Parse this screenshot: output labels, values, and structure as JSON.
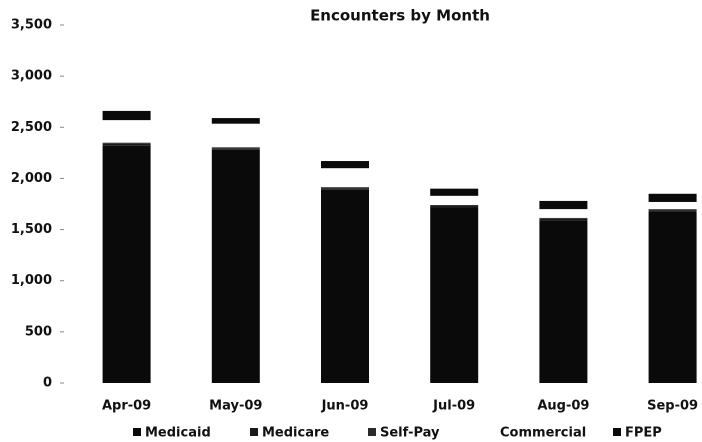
{
  "chart_data": {
    "type": "stacked_bar",
    "title": "Encounters by Month",
    "categories": [
      "Apr-09",
      "May-09",
      "Jun-09",
      "Jul-09",
      "Aug-09",
      "Sep-09"
    ],
    "series": [
      {
        "name": "Medicaid",
        "color": "#0a0a0a",
        "values": [
          2320,
          2280,
          1890,
          1720,
          1590,
          1680
        ]
      },
      {
        "name": "Medicare",
        "color": "#1a1a1a",
        "values": [
          20,
          15,
          15,
          10,
          15,
          10
        ]
      },
      {
        "name": "Self-Pay",
        "color": "#2a2a2a",
        "values": [
          10,
          10,
          10,
          10,
          10,
          10
        ]
      },
      {
        "name": "Commercial",
        "color": "#ffffff",
        "values": [
          220,
          230,
          185,
          90,
          85,
          70
        ]
      },
      {
        "name": "FPEP",
        "color": "#0a0a0a",
        "values": [
          90,
          55,
          70,
          70,
          80,
          80
        ]
      }
    ],
    "ylim": [
      0,
      3500
    ],
    "yticks": [
      0,
      500,
      {
        "value": 1000,
        "label": "1,000"
      },
      {
        "value": 1500,
        "label": "1,500"
      },
      {
        "value": 2000,
        "label": "2,000"
      },
      {
        "value": 2500,
        "label": "2,500"
      },
      {
        "value": 3000,
        "label": "3,000"
      },
      {
        "value": 3500,
        "label": "3,500"
      }
    ],
    "legend": "bottom"
  }
}
